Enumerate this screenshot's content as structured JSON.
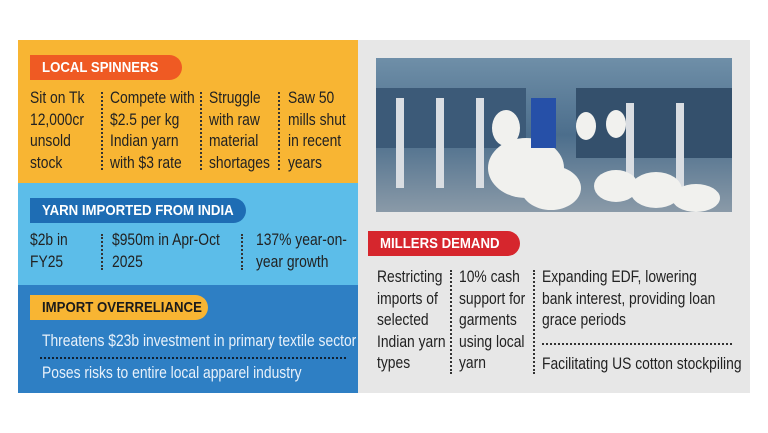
{
  "local_spinners": {
    "title": "LOCAL SPINNERS",
    "points": [
      "Sit on Tk 12,000cr unsold stock",
      "Compete with $2.5 per kg Indian yarn with $3 rate",
      "Struggle with raw material shortages",
      "Saw 50 mills shut in recent years"
    ]
  },
  "yarn_imported": {
    "title": "YARN IMPORTED FROM INDIA",
    "points": [
      "$2b in FY25",
      "$950m in Apr-Oct 2025",
      "137% year-on-year growth"
    ]
  },
  "import_overreliance": {
    "title": "IMPORT OVERRELIANCE",
    "points": [
      "Threatens $23b investment in primary textile sector",
      "Poses risks to entire local apparel industry"
    ]
  },
  "millers_demand": {
    "title": "MILLERS DEMAND",
    "points": [
      "Restricting imports of selected Indian yarn types",
      "10% cash support for garments using local yarn",
      "Expanding EDF, lowering bank interest, providing loan grace periods",
      "Facilitating US cotton stockpiling"
    ]
  }
}
